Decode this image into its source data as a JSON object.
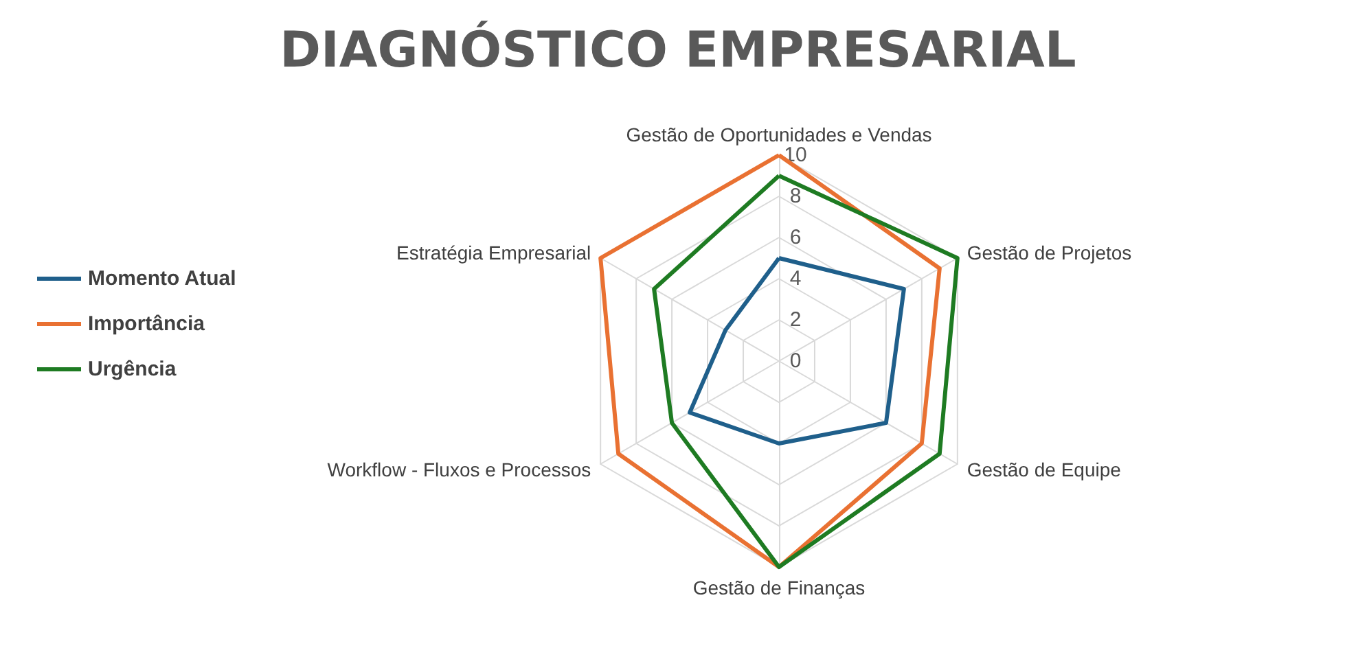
{
  "chart_data": {
    "type": "radar",
    "title": "DIAGNÓSTICO EMPRESARIAL",
    "categories": [
      "Gestão de Oportunidades e Vendas",
      "Gestão de Projetos",
      "Gestão de Equipe",
      "Gestão de Finanças",
      "Workflow - Fluxos e Processos",
      "Estratégia Empresarial"
    ],
    "series": [
      {
        "name": "Momento Atual",
        "color": "#1f5f8b",
        "values": [
          5,
          7,
          6,
          4,
          5,
          3
        ]
      },
      {
        "name": "Importância",
        "color": "#e97132",
        "values": [
          10,
          9,
          8,
          10,
          9,
          10
        ]
      },
      {
        "name": "Urgência",
        "color": "#1e7b22",
        "values": [
          9,
          10,
          9,
          10,
          6,
          7
        ]
      }
    ],
    "ylim": [
      0,
      10
    ],
    "yticks": [
      0,
      2,
      4,
      6,
      8,
      10
    ],
    "grid": true,
    "legend": "left",
    "marker": "none",
    "line_style": "solid"
  }
}
